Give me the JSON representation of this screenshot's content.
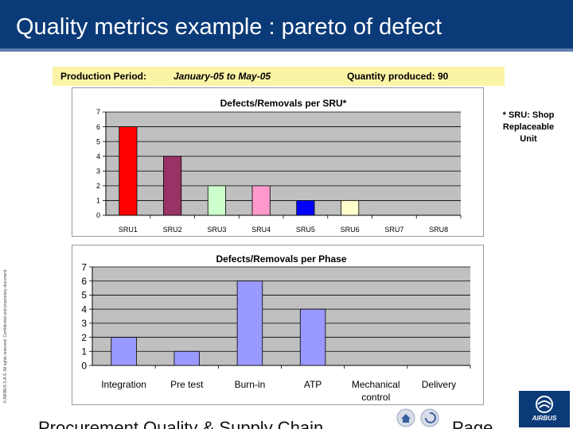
{
  "slide": {
    "title": "Quality metrics example : pareto of defect",
    "period_label": "Production Period:",
    "period_value": "January-05 to May-05",
    "quantity_text": "Quantity produced: 90",
    "sru_note": [
      "* SRU: Shop",
      "Replaceable",
      "Unit"
    ],
    "side_text": "© AIRBUS S.A.S. All rights reserved. Confidential and proprietary document.",
    "footer_left": "Procurement Quality & Supply Chain",
    "footer_right": "Page",
    "logo_text": "AIRBUS",
    "colors": {
      "title_bar": "#0b3a78",
      "band": "#fbf4a6",
      "plot_bg": "#c0c0c0"
    }
  },
  "chart_data": [
    {
      "type": "bar",
      "title": "Defects/Removals per SRU*",
      "categories": [
        "SRU1",
        "SRU2",
        "SRU3",
        "SRU4",
        "SRU5",
        "SRU6",
        "SRU7",
        "SRU8"
      ],
      "values": [
        6,
        4,
        2,
        2,
        1,
        1,
        0,
        0
      ],
      "colors": [
        "#ff0000",
        "#993366",
        "#ccffcc",
        "#ff99cc",
        "#0000ff",
        "#ffffcc",
        "#c0c0c0",
        "#c0c0c0"
      ],
      "ylim": [
        0,
        7
      ],
      "yticks": [
        0,
        1,
        2,
        3,
        4,
        5,
        6,
        7
      ],
      "grid": true,
      "legend": "none"
    },
    {
      "type": "bar",
      "title": "Defects/Removals per Phase",
      "categories": [
        "Integration",
        "Pre test",
        "Burn-in",
        "ATP",
        "Mechanical control",
        "Delivery"
      ],
      "values": [
        2,
        1,
        6,
        4,
        0,
        0
      ],
      "color": "#9999ff",
      "ylim": [
        0,
        7
      ],
      "yticks": [
        0,
        1,
        2,
        3,
        4,
        5,
        6,
        7
      ],
      "grid": true,
      "legend": "none"
    }
  ]
}
